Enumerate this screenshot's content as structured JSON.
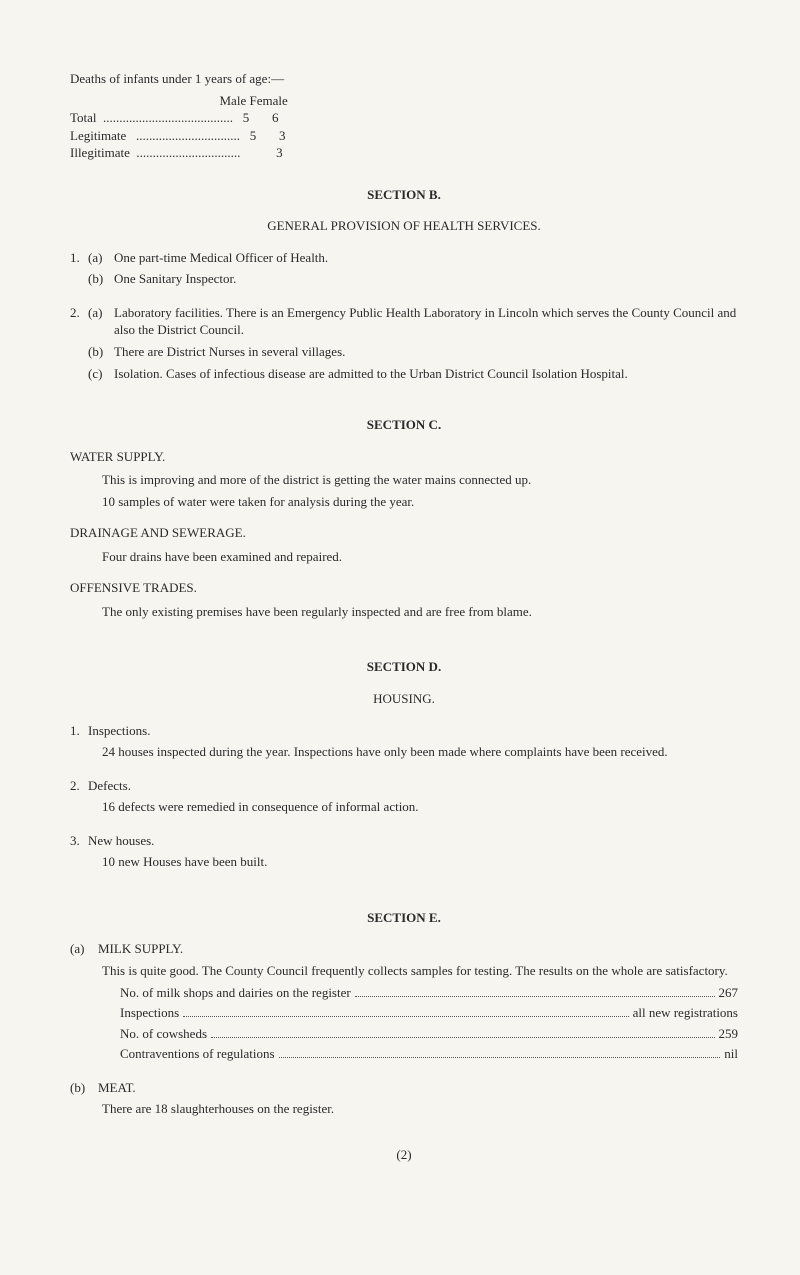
{
  "intro": {
    "lead": "Deaths of infants under 1 years of age:—",
    "header": "                                              Male Female",
    "rows": [
      "Total  ........................................   5       6",
      "Legitimate   ................................   5       3",
      "Illegitimate  ................................           3"
    ]
  },
  "sectionB": {
    "title": "SECTION B.",
    "subhead": "GENERAL PROVISION OF HEALTH SERVICES.",
    "items": [
      {
        "num": "1.",
        "sub": "(a)",
        "text": "One part-time Medical Officer of Health."
      },
      {
        "num": "",
        "sub": "(b)",
        "text": "One Sanitary Inspector."
      },
      {
        "num": "2.",
        "sub": "(a)",
        "text": "Laboratory facilities.  There is an Emergency Public Health Laboratory in Lincoln which serves the County Council and also the District Council."
      },
      {
        "num": "",
        "sub": "(b)",
        "text": "There are District Nurses in several villages."
      },
      {
        "num": "",
        "sub": "(c)",
        "text": "Isolation.  Cases of infectious disease are admitted to the Urban District Council Isolation Hospital."
      }
    ]
  },
  "sectionC": {
    "title": "SECTION C.",
    "water": {
      "heading": "WATER SUPPLY.",
      "p1": "This is improving and more of the district is getting the water mains connected up.",
      "p2": "10 samples of water were taken for analysis during the year."
    },
    "drainage": {
      "heading": "DRAINAGE AND SEWERAGE.",
      "p1": "Four drains have been examined and repaired."
    },
    "offensive": {
      "heading": "OFFENSIVE TRADES.",
      "p1": "The only existing premises have been regularly inspected and are free from blame."
    }
  },
  "sectionD": {
    "title": "SECTION D.",
    "subhead": "HOUSING.",
    "items": [
      {
        "num": "1.",
        "heading": "Inspections.",
        "body": "24 houses inspected during the year.  Inspections have only been made where complaints have been received."
      },
      {
        "num": "2.",
        "heading": "Defects.",
        "body": "16 defects were remedied in consequence of informal action."
      },
      {
        "num": "3.",
        "heading": "New houses.",
        "body": "10 new Houses have been built."
      }
    ]
  },
  "sectionE": {
    "title": "SECTION E.",
    "milk": {
      "sub": "(a)",
      "heading": "MILK SUPPLY.",
      "intro": "This is quite good.   The County Council frequently collects samples for testing.   The results on the whole are satisfactory.",
      "rows": [
        {
          "label": "No. of milk shops and dairies on the register",
          "value": "267"
        },
        {
          "label": "Inspections",
          "value": "all new registrations"
        },
        {
          "label": "No. of cowsheds",
          "value": "259"
        },
        {
          "label": "Contraventions of regulations",
          "value": "nil"
        }
      ]
    },
    "meat": {
      "sub": "(b)",
      "heading": "MEAT.",
      "p1": "There are 18 slaughterhouses on the register."
    }
  },
  "pageNum": "(2)"
}
